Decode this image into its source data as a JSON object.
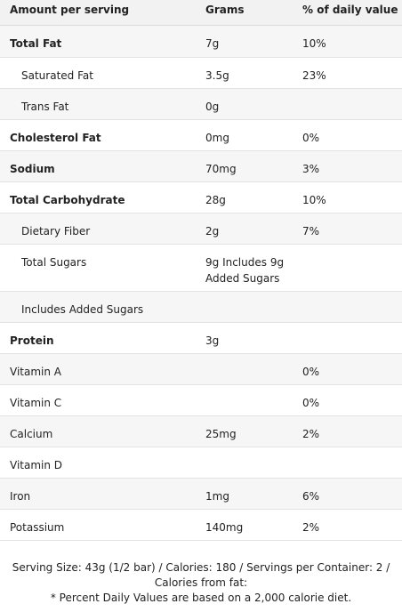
{
  "header": {
    "amount": "Amount per serving",
    "grams": "Grams",
    "dv": "% of daily value"
  },
  "rows": [
    {
      "name": "Total Fat",
      "grams": "7g",
      "dv": "10%"
    },
    {
      "name": "Saturated Fat",
      "grams": "3.5g",
      "dv": "23%"
    },
    {
      "name": "Trans Fat",
      "grams": "0g",
      "dv": ""
    },
    {
      "name": "Cholesterol Fat",
      "grams": "0mg",
      "dv": "0%"
    },
    {
      "name": "Sodium",
      "grams": "70mg",
      "dv": "3%"
    },
    {
      "name": "Total Carbohydrate",
      "grams": "28g",
      "dv": "10%"
    },
    {
      "name": "Dietary Fiber",
      "grams": "2g",
      "dv": "7%"
    },
    {
      "name": "Total Sugars",
      "grams": "9g Includes 9g Added Sugars",
      "dv": ""
    },
    {
      "name": "Includes Added Sugars",
      "grams": "",
      "dv": ""
    },
    {
      "name": "Protein",
      "grams": "3g",
      "dv": ""
    },
    {
      "name": "Vitamin A",
      "grams": "",
      "dv": "0%"
    },
    {
      "name": "Vitamin C",
      "grams": "",
      "dv": "0%"
    },
    {
      "name": "Calcium",
      "grams": "25mg",
      "dv": "2%"
    },
    {
      "name": "Vitamin D",
      "grams": "",
      "dv": ""
    },
    {
      "name": "Iron",
      "grams": "1mg",
      "dv": "6%"
    },
    {
      "name": "Potassium",
      "grams": "140mg",
      "dv": "2%"
    }
  ],
  "footer": {
    "line1": "Serving Size: 43g (1/2 bar) / Calories: 180 / Servings per Container: 2 /",
    "line2": "Calories from fat:",
    "line3": "* Percent Daily Values are based on a 2,000 calorie diet."
  }
}
